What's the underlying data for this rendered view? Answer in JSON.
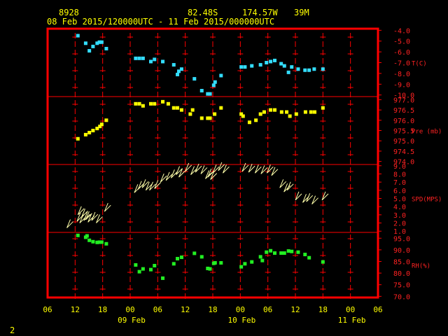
{
  "header": {
    "station_id": "8928",
    "latitude": "82.48S",
    "longitude": "174.57W",
    "elevation": "39M",
    "time_range": "08 Feb 2015/120000UTC - 11 Feb 2015/000000UTC"
  },
  "footer": {
    "page_number": "2"
  },
  "colors": {
    "frame": "#ff0000",
    "axis_text": "#ffff00",
    "panel_text": "#ff2222",
    "temperature": "#33ddff",
    "pressure": "#ffff00",
    "wind": "#ffffaa",
    "humidity": "#22ee22"
  },
  "chart_data": {
    "type": "scatter",
    "x_unit": "hours after 08 Feb 2015 06 UTC",
    "xlim": [
      0,
      72
    ],
    "x_tick_labels": [
      "06",
      "12",
      "18",
      "00",
      "06",
      "12",
      "18",
      "00",
      "06",
      "12",
      "18",
      "00",
      "06"
    ],
    "date_labels": [
      "09 Feb",
      "10 Feb",
      "11 Feb"
    ],
    "grid": true,
    "panels": [
      {
        "name": "temperature",
        "label": "T(C)",
        "ylim": [
          -10.0,
          -3.5
        ],
        "ticks": [
          "-4.0",
          "-5.0",
          "-6.0",
          "-7.0",
          "-8.0",
          "-9.0",
          "-10.0"
        ],
        "tick_values": [
          -4,
          -5,
          -6,
          -7,
          -8,
          -9,
          -10
        ],
        "points": [
          {
            "x": 6.6,
            "y": -4.5
          },
          {
            "x": 8.3,
            "y": -5.2
          },
          {
            "x": 9.1,
            "y": -5.9
          },
          {
            "x": 9.9,
            "y": -5.5
          },
          {
            "x": 10.8,
            "y": -5.2
          },
          {
            "x": 11.3,
            "y": -5.1
          },
          {
            "x": 11.8,
            "y": -5.1
          },
          {
            "x": 12.8,
            "y": -5.7
          },
          {
            "x": 19.2,
            "y": -6.6
          },
          {
            "x": 20.0,
            "y": -6.6
          },
          {
            "x": 20.8,
            "y": -6.6
          },
          {
            "x": 22.5,
            "y": -6.9
          },
          {
            "x": 23.3,
            "y": -6.7
          },
          {
            "x": 25.1,
            "y": -6.9
          },
          {
            "x": 27.5,
            "y": -7.2
          },
          {
            "x": 28.3,
            "y": -8.1
          },
          {
            "x": 28.6,
            "y": -7.8
          },
          {
            "x": 29.2,
            "y": -7.6
          },
          {
            "x": 32.0,
            "y": -8.5
          },
          {
            "x": 33.6,
            "y": -9.6
          },
          {
            "x": 34.9,
            "y": -9.9
          },
          {
            "x": 35.4,
            "y": -9.9
          },
          {
            "x": 36.2,
            "y": -9.1
          },
          {
            "x": 36.5,
            "y": -8.8
          },
          {
            "x": 37.8,
            "y": -8.2
          },
          {
            "x": 42.2,
            "y": -7.4
          },
          {
            "x": 43.0,
            "y": -7.4
          },
          {
            "x": 44.5,
            "y": -7.3
          },
          {
            "x": 46.4,
            "y": -7.2
          },
          {
            "x": 47.7,
            "y": -7.0
          },
          {
            "x": 48.6,
            "y": -6.9
          },
          {
            "x": 49.5,
            "y": -6.8
          },
          {
            "x": 50.9,
            "y": -7.1
          },
          {
            "x": 51.6,
            "y": -7.3
          },
          {
            "x": 52.5,
            "y": -7.9
          },
          {
            "x": 53.2,
            "y": -7.4
          },
          {
            "x": 54.6,
            "y": -7.6
          },
          {
            "x": 56.1,
            "y": -7.7
          },
          {
            "x": 57.0,
            "y": -7.7
          },
          {
            "x": 58.1,
            "y": -7.6
          },
          {
            "x": 60.0,
            "y": -7.6
          }
        ]
      },
      {
        "name": "pressure",
        "label": "Pre (mb)",
        "ylim": [
          973.9,
          977.3
        ],
        "ticks": [
          "977.0",
          "976.5",
          "976.0",
          "975.5",
          "975.0",
          "974.5",
          "974.0"
        ],
        "tick_values": [
          977,
          976.5,
          976,
          975.5,
          975,
          974.5,
          974
        ],
        "points": [
          {
            "x": 6.6,
            "y": 975.1
          },
          {
            "x": 8.3,
            "y": 975.3
          },
          {
            "x": 9.1,
            "y": 975.4
          },
          {
            "x": 9.9,
            "y": 975.5
          },
          {
            "x": 10.8,
            "y": 975.6
          },
          {
            "x": 11.4,
            "y": 975.7
          },
          {
            "x": 11.8,
            "y": 975.8
          },
          {
            "x": 12.8,
            "y": 976.0
          },
          {
            "x": 19.2,
            "y": 976.8
          },
          {
            "x": 20.0,
            "y": 976.8
          },
          {
            "x": 20.8,
            "y": 976.7
          },
          {
            "x": 22.5,
            "y": 976.8
          },
          {
            "x": 23.3,
            "y": 976.8
          },
          {
            "x": 25.1,
            "y": 976.9
          },
          {
            "x": 26.3,
            "y": 976.8
          },
          {
            "x": 27.5,
            "y": 976.6
          },
          {
            "x": 28.3,
            "y": 976.6
          },
          {
            "x": 29.2,
            "y": 976.5
          },
          {
            "x": 31.1,
            "y": 976.3
          },
          {
            "x": 31.6,
            "y": 976.5
          },
          {
            "x": 33.6,
            "y": 976.1
          },
          {
            "x": 34.9,
            "y": 976.1
          },
          {
            "x": 35.4,
            "y": 976.1
          },
          {
            "x": 36.4,
            "y": 976.3
          },
          {
            "x": 37.8,
            "y": 976.6
          },
          {
            "x": 42.2,
            "y": 976.3
          },
          {
            "x": 42.6,
            "y": 976.2
          },
          {
            "x": 44.0,
            "y": 975.9
          },
          {
            "x": 45.4,
            "y": 976.0
          },
          {
            "x": 46.4,
            "y": 976.3
          },
          {
            "x": 47.2,
            "y": 976.4
          },
          {
            "x": 48.6,
            "y": 976.5
          },
          {
            "x": 49.5,
            "y": 976.5
          },
          {
            "x": 51.0,
            "y": 976.4
          },
          {
            "x": 52.1,
            "y": 976.4
          },
          {
            "x": 52.8,
            "y": 976.2
          },
          {
            "x": 54.2,
            "y": 976.3
          },
          {
            "x": 56.2,
            "y": 976.4
          },
          {
            "x": 57.4,
            "y": 976.4
          },
          {
            "x": 58.2,
            "y": 976.4
          },
          {
            "x": 60.0,
            "y": 976.6
          }
        ]
      },
      {
        "name": "wind",
        "label": "SPD(MPS)",
        "ylim": [
          0.7,
          9.0
        ],
        "ticks": [
          "9.0",
          "8.0",
          "7.0",
          "6.0",
          "5.0",
          "4.0",
          "3.0",
          "2.0",
          "1.0"
        ],
        "tick_values": [
          9,
          8,
          7,
          6,
          5,
          4,
          3,
          2,
          1
        ],
        "points": [
          {
            "x": 4.2,
            "y": 1.4
          },
          {
            "x": 6.4,
            "y": 2.2
          },
          {
            "x": 6.6,
            "y": 3.0
          },
          {
            "x": 7.0,
            "y": 2.0
          },
          {
            "x": 7.4,
            "y": 2.7
          },
          {
            "x": 7.9,
            "y": 2.3
          },
          {
            "x": 8.3,
            "y": 2.4
          },
          {
            "x": 8.8,
            "y": 2.1
          },
          {
            "x": 9.6,
            "y": 2.3
          },
          {
            "x": 10.6,
            "y": 2.0
          },
          {
            "x": 12.4,
            "y": 3.4
          },
          {
            "x": 18.9,
            "y": 5.7
          },
          {
            "x": 19.7,
            "y": 6.1
          },
          {
            "x": 20.6,
            "y": 6.3
          },
          {
            "x": 21.4,
            "y": 6.0
          },
          {
            "x": 22.2,
            "y": 6.0
          },
          {
            "x": 23.3,
            "y": 6.2
          },
          {
            "x": 24.6,
            "y": 7.0
          },
          {
            "x": 25.8,
            "y": 7.2
          },
          {
            "x": 26.9,
            "y": 7.5
          },
          {
            "x": 28.0,
            "y": 7.9
          },
          {
            "x": 28.6,
            "y": 7.6
          },
          {
            "x": 30.0,
            "y": 8.3
          },
          {
            "x": 31.2,
            "y": 7.9
          },
          {
            "x": 32.2,
            "y": 8.2
          },
          {
            "x": 33.4,
            "y": 8.0
          },
          {
            "x": 34.4,
            "y": 7.4
          },
          {
            "x": 34.9,
            "y": 7.6
          },
          {
            "x": 35.5,
            "y": 7.3
          },
          {
            "x": 36.0,
            "y": 8.1
          },
          {
            "x": 37.2,
            "y": 8.4
          },
          {
            "x": 38.2,
            "y": 8.1
          },
          {
            "x": 42.4,
            "y": 8.3
          },
          {
            "x": 43.8,
            "y": 8.2
          },
          {
            "x": 45.2,
            "y": 8.1
          },
          {
            "x": 46.5,
            "y": 8.0
          },
          {
            "x": 47.8,
            "y": 8.1
          },
          {
            "x": 48.8,
            "y": 7.8
          },
          {
            "x": 50.6,
            "y": 6.3
          },
          {
            "x": 51.5,
            "y": 5.8
          },
          {
            "x": 52.2,
            "y": 6.0
          },
          {
            "x": 54.0,
            "y": 4.8
          },
          {
            "x": 55.6,
            "y": 4.5
          },
          {
            "x": 56.4,
            "y": 4.6
          },
          {
            "x": 57.6,
            "y": 4.3
          },
          {
            "x": 59.8,
            "y": 4.8
          }
        ]
      },
      {
        "name": "humidity",
        "label": "RH(%)",
        "ylim": [
          70.0,
          97.0
        ],
        "ticks": [
          "95.0",
          "90.0",
          "85.0",
          "80.0",
          "75.0",
          "70.0"
        ],
        "tick_values": [
          95,
          90,
          85,
          80,
          75,
          70
        ],
        "points": [
          {
            "x": 6.6,
            "y": 96.2
          },
          {
            "x": 8.3,
            "y": 95.4
          },
          {
            "x": 8.6,
            "y": 96.0
          },
          {
            "x": 9.1,
            "y": 94.1
          },
          {
            "x": 9.9,
            "y": 93.5
          },
          {
            "x": 10.8,
            "y": 93.2
          },
          {
            "x": 11.3,
            "y": 93.3
          },
          {
            "x": 11.8,
            "y": 93.3
          },
          {
            "x": 12.8,
            "y": 92.6
          },
          {
            "x": 19.2,
            "y": 83.5
          },
          {
            "x": 20.0,
            "y": 80.6
          },
          {
            "x": 20.8,
            "y": 81.8
          },
          {
            "x": 22.5,
            "y": 81.5
          },
          {
            "x": 23.3,
            "y": 83.2
          },
          {
            "x": 25.1,
            "y": 77.8
          },
          {
            "x": 27.5,
            "y": 84.0
          },
          {
            "x": 28.3,
            "y": 86.2
          },
          {
            "x": 29.2,
            "y": 86.8
          },
          {
            "x": 32.0,
            "y": 88.5
          },
          {
            "x": 33.6,
            "y": 87.0
          },
          {
            "x": 34.9,
            "y": 82.0
          },
          {
            "x": 35.4,
            "y": 81.8
          },
          {
            "x": 36.2,
            "y": 84.2
          },
          {
            "x": 36.5,
            "y": 84.4
          },
          {
            "x": 37.8,
            "y": 84.4
          },
          {
            "x": 42.2,
            "y": 82.7
          },
          {
            "x": 43.0,
            "y": 84.0
          },
          {
            "x": 44.5,
            "y": 84.8
          },
          {
            "x": 46.4,
            "y": 87.0
          },
          {
            "x": 46.8,
            "y": 85.4
          },
          {
            "x": 47.7,
            "y": 89.0
          },
          {
            "x": 48.6,
            "y": 89.6
          },
          {
            "x": 49.5,
            "y": 88.6
          },
          {
            "x": 50.9,
            "y": 88.6
          },
          {
            "x": 51.6,
            "y": 88.6
          },
          {
            "x": 52.5,
            "y": 89.5
          },
          {
            "x": 53.2,
            "y": 89.3
          },
          {
            "x": 54.6,
            "y": 89.0
          },
          {
            "x": 56.1,
            "y": 88.0
          },
          {
            "x": 57.0,
            "y": 86.6
          },
          {
            "x": 60.0,
            "y": 84.8
          }
        ]
      }
    ]
  }
}
